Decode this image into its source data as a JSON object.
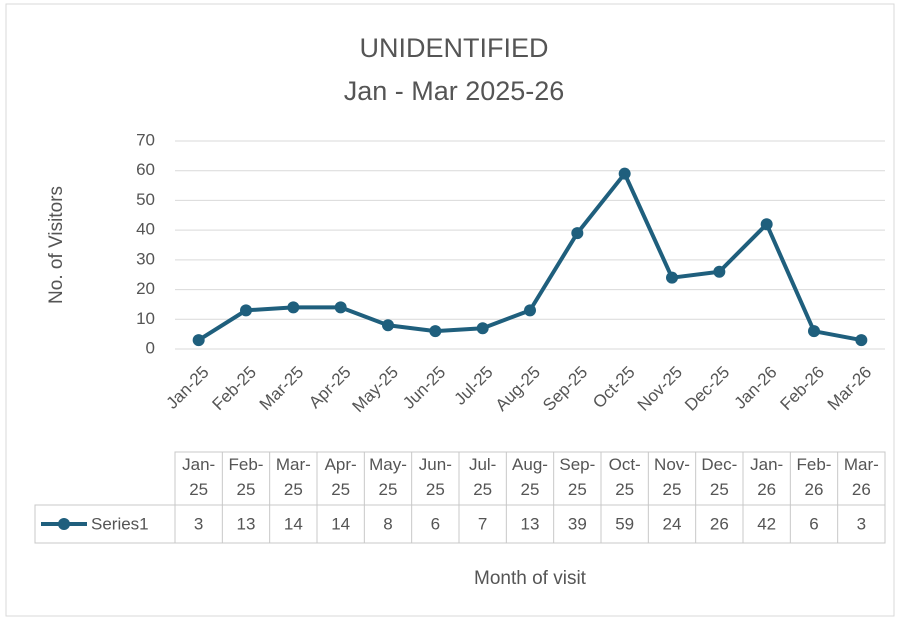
{
  "chart_data": {
    "type": "line",
    "title": "UNIDENTIFIED",
    "subtitle": "Jan - Mar 2025-26",
    "y_label": "No. of Visitors",
    "x_label": "Month of visit",
    "categories": [
      "Jan-25",
      "Feb-25",
      "Mar-25",
      "Apr-25",
      "May-25",
      "Jun-25",
      "Jul-25",
      "Aug-25",
      "Sep-25",
      "Oct-25",
      "Nov-25",
      "Dec-25",
      "Jan-26",
      "Feb-26",
      "Mar-26"
    ],
    "series": [
      {
        "name": "Series1",
        "color": "#1f5f7d",
        "values": [
          3,
          13,
          14,
          14,
          8,
          6,
          7,
          13,
          39,
          59,
          24,
          26,
          42,
          6,
          3
        ]
      }
    ],
    "ylim": [
      0,
      70
    ],
    "yticks": [
      0,
      10,
      20,
      30,
      40,
      50,
      60,
      70
    ],
    "grid": true,
    "data_table": true
  }
}
